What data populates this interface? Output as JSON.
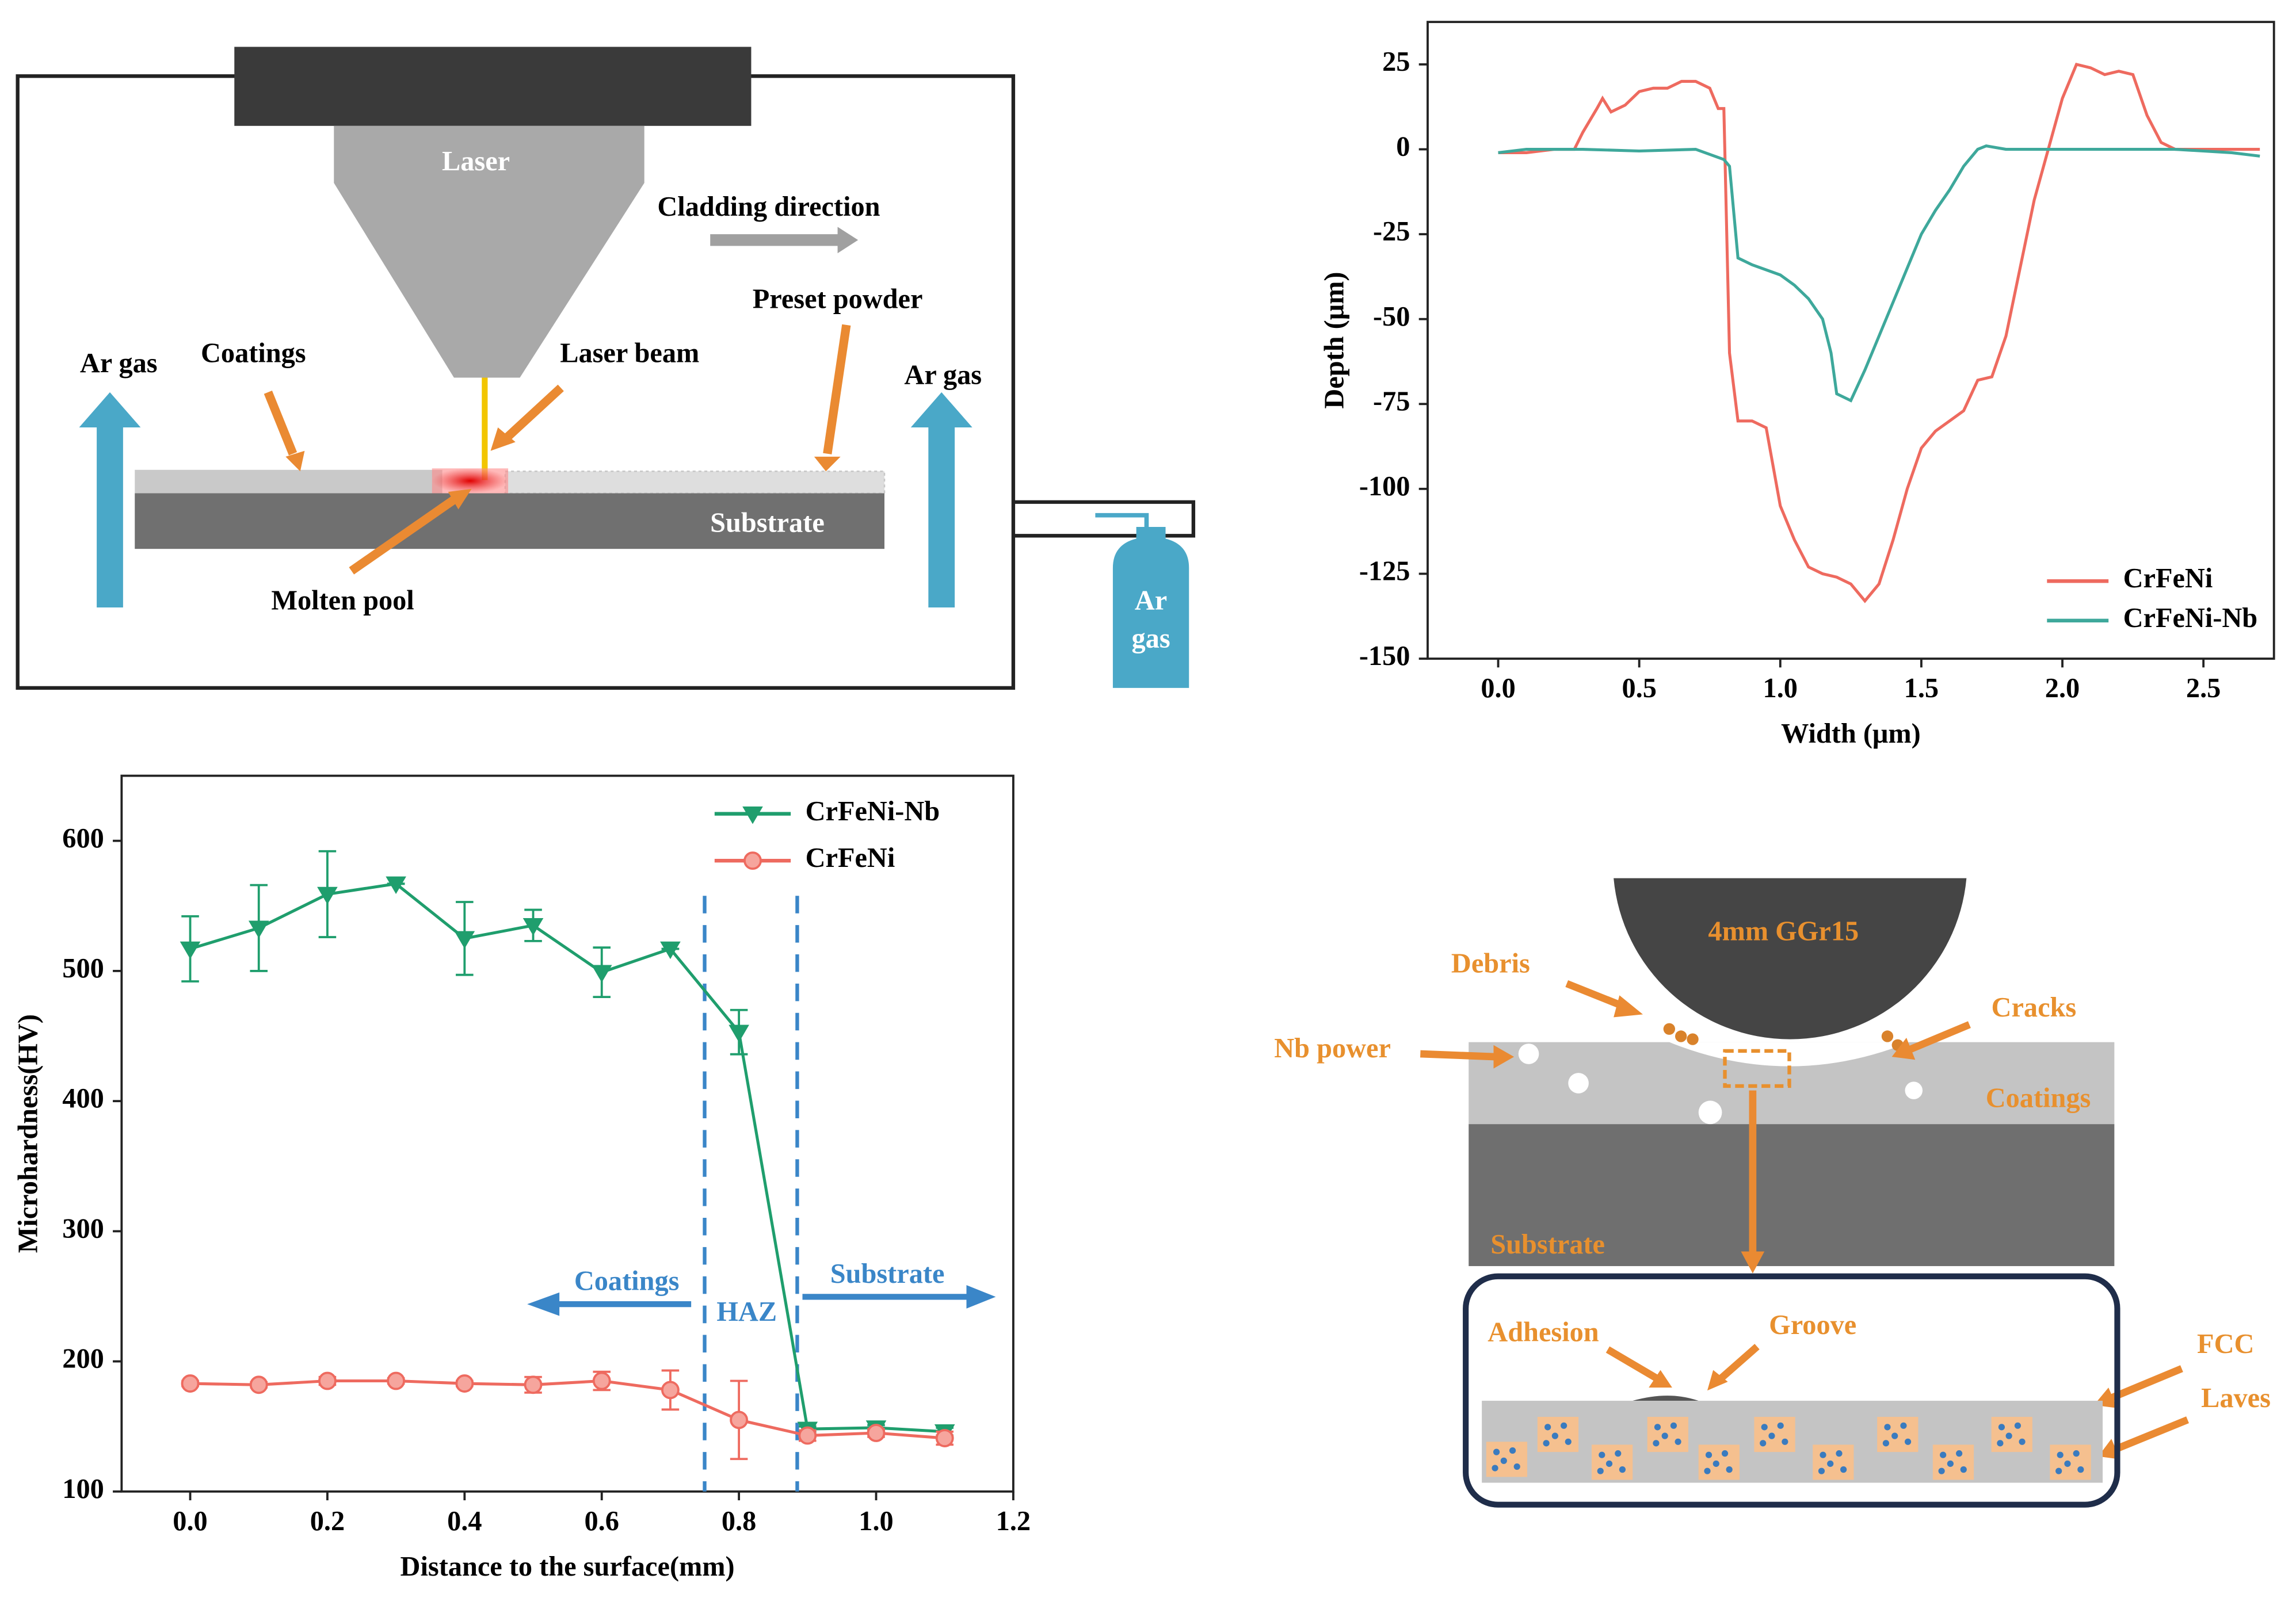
{
  "chart_data": [
    {
      "type": "line",
      "xlabel": "Width (μm)",
      "ylabel": "Depth (μm)",
      "xlim": [
        -0.25,
        2.75
      ],
      "ylim": [
        -150,
        37.5
      ],
      "xticks": [
        {
          "value": 0,
          "label": "0.0"
        },
        {
          "value": 0.5,
          "label": "0.5"
        },
        {
          "value": 1,
          "label": "1.0"
        },
        {
          "value": 1.5,
          "label": "1.5"
        },
        {
          "value": 2,
          "label": "2.0"
        },
        {
          "value": 2.5,
          "label": "2.5"
        }
      ],
      "yticks": [
        25,
        0,
        -25,
        -50,
        -75,
        -100,
        -125,
        -150
      ],
      "legend": "lower right",
      "series": [
        {
          "name": "CrFeNi",
          "color": "#ee6a5f",
          "x": [
            0,
            0.1,
            0.2,
            0.27,
            0.3,
            0.35,
            0.37,
            0.4,
            0.45,
            0.5,
            0.55,
            0.6,
            0.65,
            0.7,
            0.75,
            0.78,
            0.8,
            0.82,
            0.85,
            0.9,
            0.95,
            1.0,
            1.05,
            1.1,
            1.15,
            1.2,
            1.25,
            1.3,
            1.35,
            1.4,
            1.45,
            1.5,
            1.55,
            1.6,
            1.65,
            1.7,
            1.75,
            1.8,
            1.85,
            1.9,
            1.95,
            2.0,
            2.05,
            2.1,
            2.15,
            2.2,
            2.25,
            2.3,
            2.35,
            2.4,
            2.5,
            2.6,
            2.7
          ],
          "values": [
            -1,
            -1,
            0,
            0,
            5,
            12,
            15,
            11,
            13,
            17,
            18,
            18,
            20,
            20,
            18,
            12,
            12,
            -60,
            -80,
            -80,
            -82,
            -105,
            -115,
            -123,
            -125,
            -126,
            -128,
            -133,
            -128,
            -115,
            -100,
            -88,
            -83,
            -80,
            -77,
            -68,
            -67,
            -55,
            -35,
            -15,
            0,
            15,
            25,
            24,
            22,
            23,
            22,
            10,
            2,
            0,
            0,
            0,
            0
          ]
        },
        {
          "name": "CrFeNi-Nb",
          "color": "#3ea89b",
          "x": [
            0,
            0.1,
            0.3,
            0.5,
            0.7,
            0.8,
            0.82,
            0.85,
            0.9,
            1.0,
            1.05,
            1.1,
            1.15,
            1.18,
            1.2,
            1.25,
            1.3,
            1.35,
            1.4,
            1.45,
            1.5,
            1.55,
            1.6,
            1.65,
            1.7,
            1.73,
            1.8,
            2.0,
            2.2,
            2.4,
            2.6,
            2.7
          ],
          "values": [
            -1,
            0,
            0,
            -0.5,
            0,
            -3,
            -5,
            -32,
            -34,
            -37,
            -40,
            -44,
            -50,
            -60,
            -72,
            -74,
            -65,
            -55,
            -45,
            -35,
            -25,
            -18,
            -12,
            -5,
            0,
            1,
            0,
            0,
            0,
            0,
            -1,
            -2
          ]
        }
      ]
    },
    {
      "type": "line",
      "xlabel": "Distance to the surface(mm)",
      "ylabel": "Microhardness(HV)",
      "xlim": [
        -0.1,
        1.2
      ],
      "ylim": [
        100,
        650
      ],
      "xticks": [
        {
          "value": 0,
          "label": "0.0"
        },
        {
          "value": 0.2,
          "label": "0.2"
        },
        {
          "value": 0.4,
          "label": "0.4"
        },
        {
          "value": 0.6,
          "label": "0.6"
        },
        {
          "value": 0.8,
          "label": "0.8"
        },
        {
          "value": 1,
          "label": "1.0"
        },
        {
          "value": 1.2,
          "label": "1.2"
        }
      ],
      "yticks": [
        100,
        200,
        300,
        400,
        500,
        600
      ],
      "legend": "upper right",
      "vlines": [
        0.75,
        0.885
      ],
      "annotations": [
        "Coatings",
        "HAZ",
        "Substrate"
      ],
      "series": [
        {
          "name": "CrFeNi-Nb",
          "color": "#1f9e6d",
          "marker": "triangle-down",
          "x": [
            0,
            0.1,
            0.2,
            0.3,
            0.4,
            0.5,
            0.6,
            0.7,
            0.8,
            0.9,
            1.0,
            1.1
          ],
          "values": [
            517,
            533,
            559,
            567,
            525,
            535,
            499,
            517,
            453,
            148,
            149,
            146
          ],
          "errors": [
            25,
            33,
            33,
            0,
            28,
            12,
            19,
            0,
            17,
            2,
            2,
            3
          ]
        },
        {
          "name": "CrFeNi",
          "color": "#ee6a5f",
          "marker": "circle",
          "x": [
            0,
            0.1,
            0.2,
            0.3,
            0.4,
            0.5,
            0.6,
            0.7,
            0.8,
            0.9,
            1.0,
            1.1
          ],
          "values": [
            183,
            182,
            185,
            185,
            183,
            182,
            185,
            178,
            155,
            143,
            145,
            141
          ],
          "errors": [
            2,
            2,
            3,
            2,
            2,
            6,
            7,
            15,
            30,
            4,
            3,
            5
          ]
        }
      ]
    }
  ],
  "laser_diagram": {
    "laser": "Laser",
    "cladding_direction": "Cladding direction",
    "preset_powder": "Preset powder",
    "coatings": "Coatings",
    "laser_beam": "Laser beam",
    "ar_gas_left": "Ar gas",
    "ar_gas_right": "Ar gas",
    "substrate": "Substrate",
    "molten_pool": "Molten pool",
    "bottle_1": "Ar",
    "bottle_2": "gas"
  },
  "wear_diagram": {
    "ball": "4mm GGr15",
    "debris": "Debris",
    "cracks": "Cracks",
    "nb_power": "Nb power",
    "coatings": "Coatings",
    "substrate": "Substrate",
    "adhesion": "Adhesion",
    "groove": "Groove",
    "fcc": "FCC",
    "laves": "Laves"
  }
}
